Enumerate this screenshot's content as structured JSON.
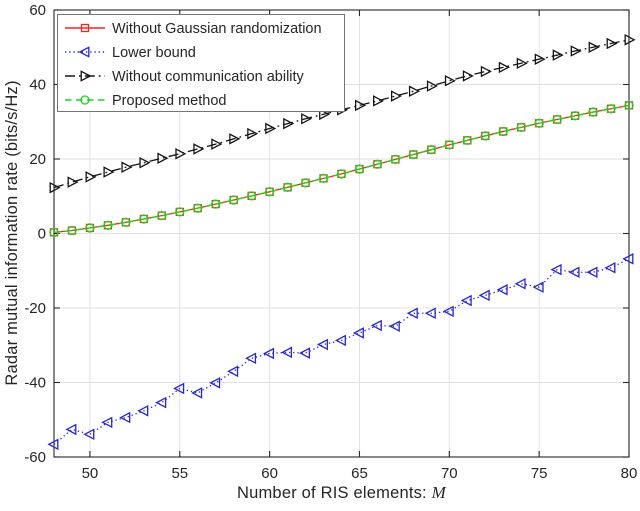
{
  "figure": {
    "background": "#ffffff",
    "frame_color": "#262626",
    "grid_color": "#e2e2e2",
    "tick_label_color": "#262626"
  },
  "chart_data": {
    "type": "line",
    "title": "",
    "xlabel": "Number of RIS elements: M",
    "xlabel_prefix": "Number of RIS elements: ",
    "xlabel_italic": "M",
    "ylabel": "Radar mutual information rate (bits/s/Hz)",
    "xlim": [
      48,
      80
    ],
    "ylim": [
      -60,
      60
    ],
    "xticks": [
      50,
      55,
      60,
      65,
      70,
      75,
      80
    ],
    "yticks": [
      -60,
      -40,
      -20,
      0,
      20,
      40,
      60
    ],
    "grid": true,
    "box": true,
    "legend_position": "top-left",
    "x": [
      48,
      49,
      50,
      51,
      52,
      53,
      54,
      55,
      56,
      57,
      58,
      59,
      60,
      61,
      62,
      63,
      64,
      65,
      66,
      67,
      68,
      69,
      70,
      71,
      72,
      73,
      74,
      75,
      76,
      77,
      78,
      79,
      80
    ],
    "series": [
      {
        "name": "Without Gaussian randomization",
        "color": "#ff2020",
        "line_style": "solid",
        "marker": "square",
        "values": [
          0.3,
          0.8,
          1.5,
          2.2,
          3.0,
          3.9,
          4.8,
          5.8,
          6.8,
          7.9,
          9.0,
          10.1,
          11.2,
          12.4,
          13.6,
          14.8,
          16.0,
          17.3,
          18.6,
          19.9,
          21.2,
          22.5,
          23.8,
          25.0,
          26.2,
          27.4,
          28.5,
          29.6,
          30.6,
          31.6,
          32.6,
          33.5,
          34.4
        ]
      },
      {
        "name": "Lower bound",
        "color": "#2525dd",
        "line_style": "dotted",
        "marker": "triangle-left",
        "values": [
          -56.6,
          -52.6,
          -53.9,
          -50.7,
          -49.4,
          -47.6,
          -45.4,
          -41.6,
          -42.8,
          -40.1,
          -37.0,
          -33.5,
          -32.2,
          -31.9,
          -32.1,
          -29.8,
          -28.7,
          -26.7,
          -24.7,
          -24.9,
          -21.4,
          -21.4,
          -20.9,
          -18.0,
          -16.6,
          -15.1,
          -13.5,
          -14.4,
          -9.7,
          -10.4,
          -10.4,
          -9.2,
          -6.8
        ]
      },
      {
        "name": "Without communication ability",
        "color": "#141414",
        "line_style": "dashdot",
        "marker": "triangle-right",
        "values": [
          12.3,
          13.8,
          15.2,
          16.5,
          17.8,
          19.0,
          20.2,
          21.4,
          22.7,
          24.0,
          25.4,
          26.8,
          28.2,
          29.5,
          30.8,
          32.0,
          33.2,
          34.4,
          35.6,
          36.9,
          38.2,
          39.6,
          41.0,
          42.3,
          43.5,
          44.6,
          45.7,
          46.8,
          47.9,
          49.0,
          50.0,
          51.0,
          52.0
        ]
      },
      {
        "name": "Proposed method",
        "color": "#17d617",
        "line_style": "dashed",
        "marker": "circle",
        "values": [
          0.3,
          0.8,
          1.5,
          2.2,
          3.0,
          3.9,
          4.8,
          5.8,
          6.8,
          7.9,
          9.0,
          10.1,
          11.2,
          12.4,
          13.6,
          14.8,
          16.0,
          17.3,
          18.6,
          19.9,
          21.2,
          22.5,
          23.8,
          25.0,
          26.2,
          27.4,
          28.5,
          29.6,
          30.6,
          31.6,
          32.6,
          33.5,
          34.4
        ]
      }
    ]
  }
}
